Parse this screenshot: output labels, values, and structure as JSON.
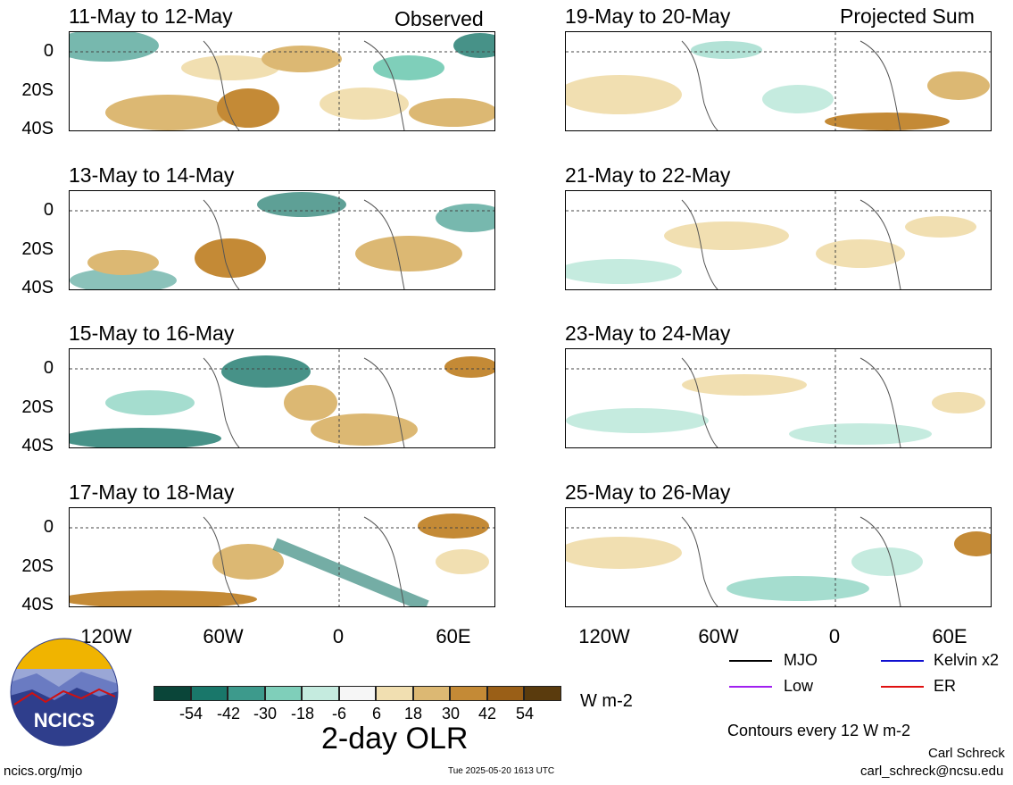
{
  "panel_titles": {
    "left": [
      "11-May to 12-May",
      "13-May to 14-May",
      "15-May to 16-May",
      "17-May to 18-May"
    ],
    "right": [
      "19-May to 20-May",
      "21-May to 22-May",
      "23-May to 24-May",
      "25-May to 26-May"
    ]
  },
  "column_headers": {
    "left": "Observed",
    "right": "Projected Sum"
  },
  "lat_ticks": [
    "0",
    "20S",
    "40S"
  ],
  "lon_ticks": [
    "120W",
    "60W",
    "0",
    "60E"
  ],
  "colorbar": {
    "labels": [
      "-54",
      "-42",
      "-30",
      "-18",
      "-6",
      "6",
      "18",
      "30",
      "42",
      "54"
    ],
    "colors": [
      "#0a4539",
      "#19776a",
      "#3d9a8c",
      "#7fcfba",
      "#c5ebdf",
      "#f6f6f6",
      "#f1dfb1",
      "#dcb873",
      "#c48a36",
      "#9a5f17",
      "#5a3b0d"
    ],
    "unit": "W m-2",
    "title": "2-day OLR"
  },
  "legend": [
    {
      "label": "MJO",
      "color": "#000000"
    },
    {
      "label": "Kelvin x2",
      "color": "#1010d0"
    },
    {
      "label": "Low",
      "color": "#a020f0"
    },
    {
      "label": "ER",
      "color": "#e01010"
    }
  ],
  "contour_note": "Contours every 12 W m-2",
  "author": "Carl Schreck",
  "email": "carl_schreck@ncsu.edu",
  "site": "ncics.org/mjo",
  "timestamp": "Tue 2025-05-20 1613 UTC",
  "logo_text": "NCICS"
}
